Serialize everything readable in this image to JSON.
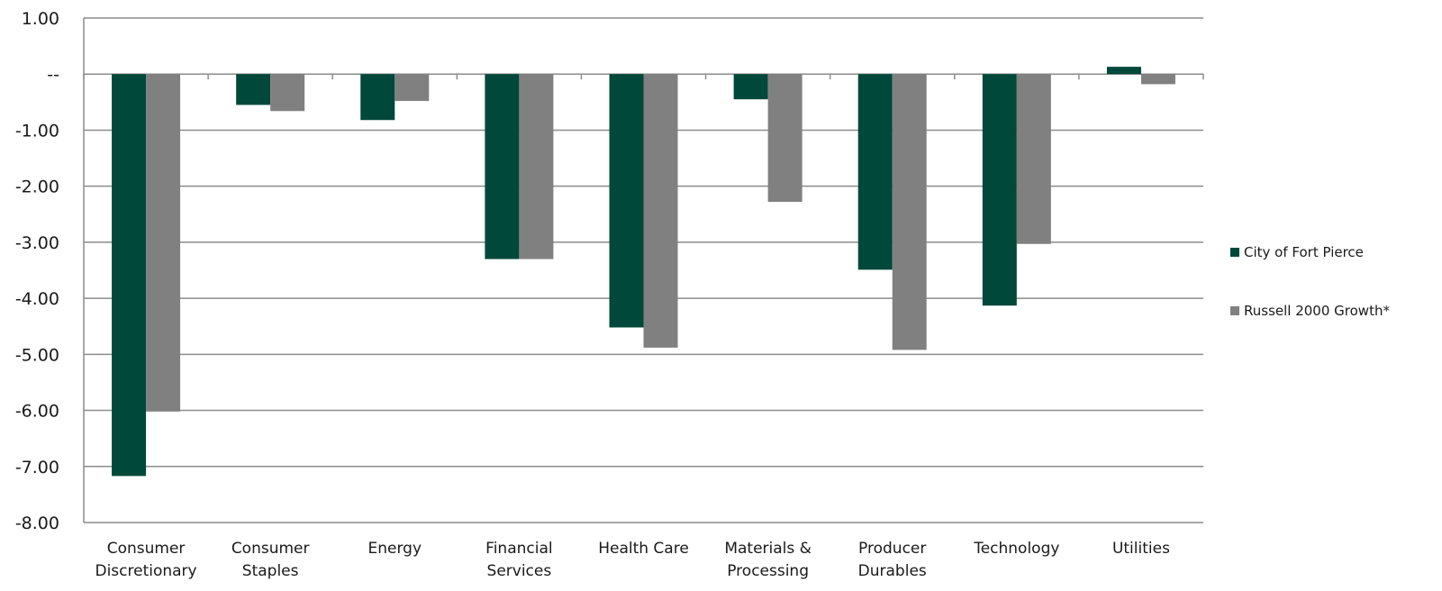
{
  "chart_data": {
    "type": "bar",
    "categories": [
      [
        "Consumer",
        "Discretionary"
      ],
      [
        "Consumer",
        "Staples"
      ],
      [
        "Energy"
      ],
      [
        "Financial",
        "Services"
      ],
      [
        "Health Care"
      ],
      [
        "Materials &",
        "Processing"
      ],
      [
        "Producer",
        "Durables"
      ],
      [
        "Technology"
      ],
      [
        "Utilities"
      ]
    ],
    "series": [
      {
        "name": "City of Fort Pierce",
        "color": "#00483A",
        "values": [
          -7.17,
          -0.55,
          -0.82,
          -3.3,
          -4.52,
          -0.45,
          -3.49,
          -4.13,
          0.13
        ]
      },
      {
        "name": "Russell 2000 Growth*",
        "color": "#808080",
        "values": [
          -6.02,
          -0.66,
          -0.48,
          -3.3,
          -4.88,
          -2.28,
          -4.92,
          -3.03,
          -0.18
        ]
      }
    ],
    "ylim": [
      -8,
      1
    ],
    "yticks": [
      1,
      0,
      -1,
      -2,
      -3,
      -4,
      -5,
      -6,
      -7,
      -8
    ],
    "ytick_labels": [
      "1.00",
      "--",
      "-1.00",
      "-2.00",
      "-3.00",
      "-4.00",
      "-5.00",
      "-6.00",
      "-7.00",
      "-8.00"
    ],
    "grid": true,
    "legend_position": "right"
  }
}
